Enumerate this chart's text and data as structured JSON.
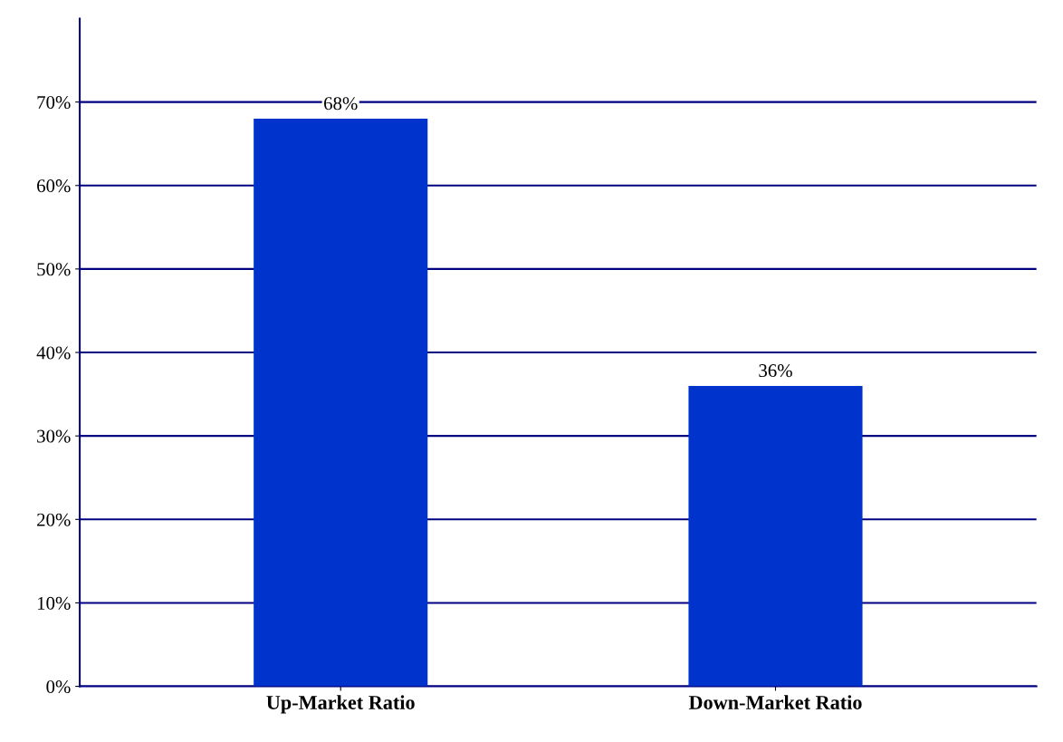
{
  "chart_data": {
    "type": "bar",
    "categories": [
      "Up-Market Ratio",
      "Down-Market Ratio"
    ],
    "values": [
      68,
      36
    ],
    "color": "#0033cc",
    "ylim": [
      0,
      80
    ],
    "yticks": [
      {
        "value": 0,
        "label": "0%"
      },
      {
        "value": 10,
        "label": "10%"
      },
      {
        "value": 20,
        "label": "20%"
      },
      {
        "value": 30,
        "label": "30%"
      },
      {
        "value": 40,
        "label": "40%"
      },
      {
        "value": 50,
        "label": "50%"
      },
      {
        "value": 60,
        "label": "60%"
      },
      {
        "value": 70,
        "label": "70%"
      }
    ],
    "grid": "y",
    "value_labels": [
      "68%",
      "36%"
    ]
  }
}
